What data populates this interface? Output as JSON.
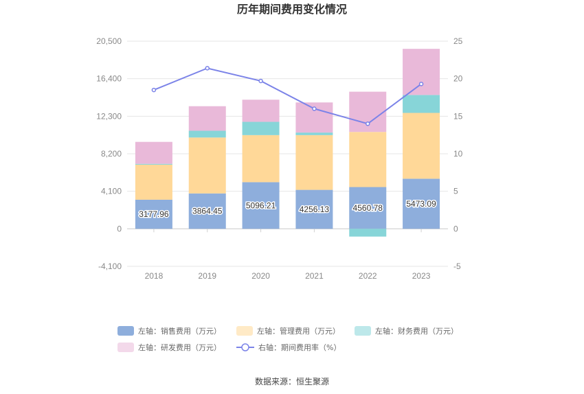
{
  "chart_data": {
    "type": "bar",
    "stacked": true,
    "title": "历年期间费用变化情况",
    "categories": [
      "2018",
      "2019",
      "2020",
      "2021",
      "2022",
      "2023"
    ],
    "left_axis": {
      "min": -4100,
      "max": 20500,
      "ticks": [
        "-4,100",
        "0",
        "4,100",
        "8,200",
        "12,300",
        "16,400",
        "20,500"
      ],
      "tick_values": [
        -4100,
        0,
        4100,
        8200,
        12300,
        16400,
        20500
      ]
    },
    "right_axis": {
      "min": -5,
      "max": 25,
      "ticks": [
        "-5",
        "0",
        "5",
        "10",
        "15",
        "20",
        "25"
      ],
      "tick_values": [
        -5,
        0,
        5,
        10,
        15,
        20,
        25
      ]
    },
    "series": [
      {
        "name": "左轴：销售费用（万元）",
        "color": "#8eaedc",
        "values": [
          3177.96,
          3864.45,
          5096.21,
          4256.13,
          4560.78,
          5473.09
        ],
        "labels": [
          "3177.96",
          "3864.45",
          "5096.21",
          "4256.13",
          "4560.78",
          "5473.09"
        ]
      },
      {
        "name": "左轴：管理费用（万元）",
        "color": "#ffd898",
        "values": [
          3830,
          6110,
          5140,
          5980,
          6020,
          7190
        ]
      },
      {
        "name": "左轴：财务费用（万元）",
        "color": "#87d5d8",
        "values": [
          90,
          740,
          1450,
          280,
          -850,
          1960
        ]
      },
      {
        "name": "左轴：研发费用（万元）",
        "color": "#e9b9d9",
        "values": [
          2400,
          2680,
          2420,
          3290,
          4400,
          5040
        ]
      }
    ],
    "line": {
      "name": "右轴：期间费用率（%）",
      "color": "#7b83e8",
      "values": [
        18.5,
        21.4,
        19.7,
        16.0,
        14.0,
        19.3
      ]
    },
    "legend_position": "bottom"
  },
  "source": "数据来源：恒生聚源"
}
